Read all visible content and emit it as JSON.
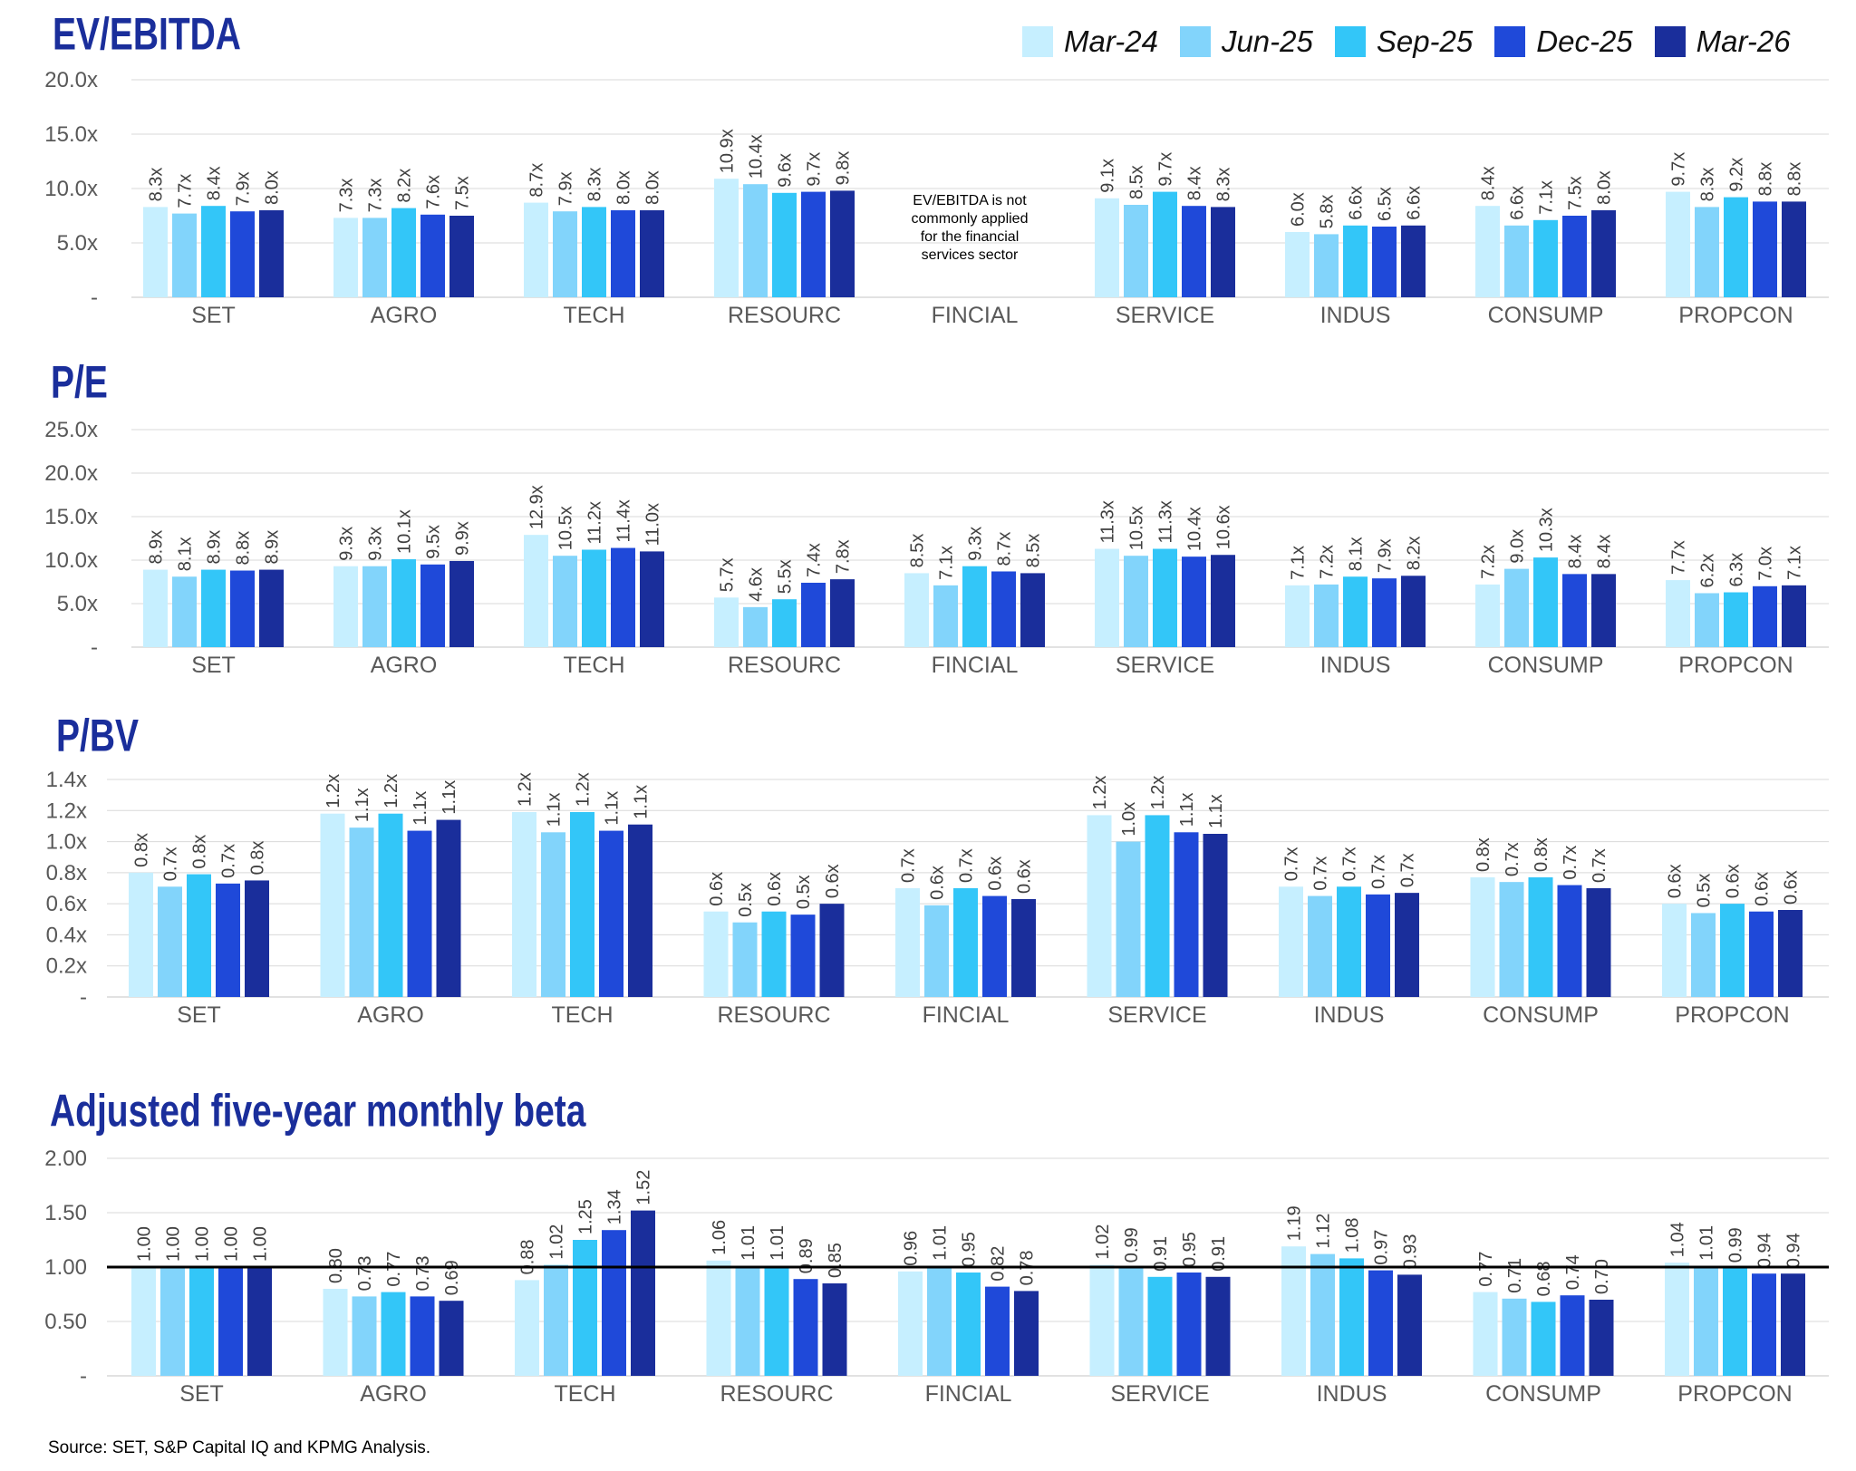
{
  "legend": {
    "series": [
      "Mar-24",
      "Jun-25",
      "Sep-25",
      "Dec-25",
      "Mar-26"
    ],
    "colors": [
      "#c6efff",
      "#82d4fb",
      "#33c6f8",
      "#1f49d9",
      "#1a2e9b"
    ]
  },
  "source": "Source: SET, S&P Capital IQ and KPMG Analysis.",
  "chart_data": [
    {
      "type": "bar",
      "title": "EV/EBITDA",
      "categories": [
        "SET",
        "AGRO",
        "TECH",
        "RESOURC",
        "FINCIAL",
        "SERVICE",
        "INDUS",
        "CONSUMP",
        "PROPCON"
      ],
      "ylim": [
        0,
        20
      ],
      "yticks": [
        "-",
        "5.0x",
        "10.0x",
        "15.0x",
        "20.0x"
      ],
      "grid": true,
      "legend_position": "top-right",
      "annotation": "EV/EBITDA is not commonly applied for the financial services sector",
      "series": [
        {
          "name": "Mar-24",
          "values": [
            8.3,
            7.3,
            8.7,
            10.9,
            null,
            9.1,
            6.0,
            8.4,
            9.7
          ],
          "labels": [
            "8.3x",
            "7.3x",
            "8.7x",
            "10.9x",
            null,
            "9.1x",
            "6.0x",
            "8.4x",
            "9.7x"
          ]
        },
        {
          "name": "Jun-25",
          "values": [
            7.7,
            7.3,
            7.9,
            10.4,
            null,
            8.5,
            5.8,
            6.6,
            8.3
          ],
          "labels": [
            "7.7x",
            "7.3x",
            "7.9x",
            "10.4x",
            null,
            "8.5x",
            "5.8x",
            "6.6x",
            "8.3x"
          ]
        },
        {
          "name": "Sep-25",
          "values": [
            8.4,
            8.2,
            8.3,
            9.6,
            null,
            9.7,
            6.6,
            7.1,
            9.2
          ],
          "labels": [
            "8.4x",
            "8.2x",
            "8.3x",
            "9.6x",
            null,
            "9.7x",
            "6.6x",
            "7.1x",
            "9.2x"
          ]
        },
        {
          "name": "Dec-25",
          "values": [
            7.9,
            7.6,
            8.0,
            9.7,
            null,
            8.4,
            6.5,
            7.5,
            8.8
          ],
          "labels": [
            "7.9x",
            "7.6x",
            "8.0x",
            "9.7x",
            null,
            "8.4x",
            "6.5x",
            "7.5x",
            "8.8x"
          ]
        },
        {
          "name": "Mar-26",
          "values": [
            8.0,
            7.5,
            8.0,
            9.8,
            null,
            8.3,
            6.6,
            8.0,
            8.8
          ],
          "labels": [
            "8.0x",
            "7.5x",
            "8.0x",
            "9.8x",
            null,
            "8.3x",
            "6.6x",
            "8.0x",
            "8.8x"
          ]
        }
      ]
    },
    {
      "type": "bar",
      "title": "P/E",
      "categories": [
        "SET",
        "AGRO",
        "TECH",
        "RESOURC",
        "FINCIAL",
        "SERVICE",
        "INDUS",
        "CONSUMP",
        "PROPCON"
      ],
      "ylim": [
        0,
        25
      ],
      "yticks": [
        "-",
        "5.0x",
        "10.0x",
        "15.0x",
        "20.0x",
        "25.0x"
      ],
      "grid": true,
      "series": [
        {
          "name": "Mar-24",
          "values": [
            8.9,
            9.3,
            12.9,
            5.7,
            8.5,
            11.3,
            7.1,
            7.2,
            7.7
          ],
          "labels": [
            "8.9x",
            "9.3x",
            "12.9x",
            "5.7x",
            "8.5x",
            "11.3x",
            "7.1x",
            "7.2x",
            "7.7x"
          ]
        },
        {
          "name": "Jun-25",
          "values": [
            8.1,
            9.3,
            10.5,
            4.6,
            7.1,
            10.5,
            7.2,
            9.0,
            6.2
          ],
          "labels": [
            "8.1x",
            "9.3x",
            "10.5x",
            "4.6x",
            "7.1x",
            "10.5x",
            "7.2x",
            "9.0x",
            "6.2x"
          ]
        },
        {
          "name": "Sep-25",
          "values": [
            8.9,
            10.1,
            11.2,
            5.5,
            9.3,
            11.3,
            8.1,
            10.3,
            6.3
          ],
          "labels": [
            "8.9x",
            "10.1x",
            "11.2x",
            "5.5x",
            "9.3x",
            "11.3x",
            "8.1x",
            "10.3x",
            "6.3x"
          ]
        },
        {
          "name": "Dec-25",
          "values": [
            8.8,
            9.5,
            11.4,
            7.4,
            8.7,
            10.4,
            7.9,
            8.4,
            7.0
          ],
          "labels": [
            "8.8x",
            "9.5x",
            "11.4x",
            "7.4x",
            "8.7x",
            "10.4x",
            "7.9x",
            "8.4x",
            "7.0x"
          ]
        },
        {
          "name": "Mar-26",
          "values": [
            8.9,
            9.9,
            11.0,
            7.8,
            8.5,
            10.6,
            8.2,
            8.4,
            7.1
          ],
          "labels": [
            "8.9x",
            "9.9x",
            "11.0x",
            "7.8x",
            "8.5x",
            "10.6x",
            "8.2x",
            "8.4x",
            "7.1x"
          ]
        }
      ]
    },
    {
      "type": "bar",
      "title": "P/BV",
      "categories": [
        "SET",
        "AGRO",
        "TECH",
        "RESOURC",
        "FINCIAL",
        "SERVICE",
        "INDUS",
        "CONSUMP",
        "PROPCON"
      ],
      "ylim": [
        0,
        1.4
      ],
      "yticks": [
        "-",
        "0.2x",
        "0.4x",
        "0.6x",
        "0.8x",
        "1.0x",
        "1.2x",
        "1.4x"
      ],
      "grid": true,
      "series": [
        {
          "name": "Mar-24",
          "values": [
            0.8,
            1.18,
            1.19,
            0.55,
            0.7,
            1.17,
            0.71,
            0.77,
            0.6
          ],
          "labels": [
            "0.8x",
            "1.2x",
            "1.2x",
            "0.6x",
            "0.7x",
            "1.2x",
            "0.7x",
            "0.8x",
            "0.6x"
          ]
        },
        {
          "name": "Jun-25",
          "values": [
            0.71,
            1.09,
            1.06,
            0.48,
            0.59,
            1.0,
            0.65,
            0.74,
            0.54
          ],
          "labels": [
            "0.7x",
            "1.1x",
            "1.1x",
            "0.5x",
            "0.6x",
            "1.0x",
            "0.7x",
            "0.7x",
            "0.5x"
          ]
        },
        {
          "name": "Sep-25",
          "values": [
            0.79,
            1.18,
            1.19,
            0.55,
            0.7,
            1.17,
            0.71,
            0.77,
            0.6
          ],
          "labels": [
            "0.8x",
            "1.2x",
            "1.2x",
            "0.6x",
            "0.7x",
            "1.2x",
            "0.7x",
            "0.8x",
            "0.6x"
          ]
        },
        {
          "name": "Dec-25",
          "values": [
            0.73,
            1.07,
            1.07,
            0.53,
            0.65,
            1.06,
            0.66,
            0.72,
            0.55
          ],
          "labels": [
            "0.7x",
            "1.1x",
            "1.1x",
            "0.5x",
            "0.6x",
            "1.1x",
            "0.7x",
            "0.7x",
            "0.6x"
          ]
        },
        {
          "name": "Mar-26",
          "values": [
            0.75,
            1.14,
            1.11,
            0.6,
            0.63,
            1.05,
            0.67,
            0.7,
            0.56
          ],
          "labels": [
            "0.8x",
            "1.1x",
            "1.1x",
            "0.6x",
            "0.6x",
            "1.1x",
            "0.7x",
            "0.7x",
            "0.6x"
          ]
        }
      ]
    },
    {
      "type": "bar",
      "title": "Adjusted five-year monthly beta",
      "categories": [
        "SET",
        "AGRO",
        "TECH",
        "RESOURC",
        "FINCIAL",
        "SERVICE",
        "INDUS",
        "CONSUMP",
        "PROPCON"
      ],
      "ylim": [
        0,
        2.0
      ],
      "yticks": [
        "-",
        "0.50",
        "1.00",
        "1.50",
        "2.00"
      ],
      "grid": true,
      "reference_line": 1.0,
      "series": [
        {
          "name": "Mar-24",
          "values": [
            1.0,
            0.8,
            0.88,
            1.06,
            0.96,
            1.02,
            1.19,
            0.77,
            1.04
          ],
          "labels": [
            "1.00",
            "0.80",
            "0.88",
            "1.06",
            "0.96",
            "1.02",
            "1.19",
            "0.77",
            "1.04"
          ]
        },
        {
          "name": "Jun-25",
          "values": [
            1.0,
            0.73,
            1.02,
            1.01,
            1.01,
            0.99,
            1.12,
            0.71,
            1.01
          ],
          "labels": [
            "1.00",
            "0.73",
            "1.02",
            "1.01",
            "1.01",
            "0.99",
            "1.12",
            "0.71",
            "1.01"
          ]
        },
        {
          "name": "Sep-25",
          "values": [
            1.0,
            0.77,
            1.25,
            1.01,
            0.95,
            0.91,
            1.08,
            0.68,
            0.99
          ],
          "labels": [
            "1.00",
            "0.77",
            "1.25",
            "1.01",
            "0.95",
            "0.91",
            "1.08",
            "0.68",
            "0.99"
          ]
        },
        {
          "name": "Dec-25",
          "values": [
            1.0,
            0.73,
            1.34,
            0.89,
            0.82,
            0.95,
            0.97,
            0.74,
            0.94
          ],
          "labels": [
            "1.00",
            "0.73",
            "1.34",
            "0.89",
            "0.82",
            "0.95",
            "0.97",
            "0.74",
            "0.94"
          ]
        },
        {
          "name": "Mar-26",
          "values": [
            1.0,
            0.69,
            1.52,
            0.85,
            0.78,
            0.91,
            0.93,
            0.7,
            0.94
          ],
          "labels": [
            "1.00",
            "0.69",
            "1.52",
            "0.85",
            "0.78",
            "0.91",
            "0.93",
            "0.70",
            "0.94"
          ]
        }
      ]
    }
  ]
}
